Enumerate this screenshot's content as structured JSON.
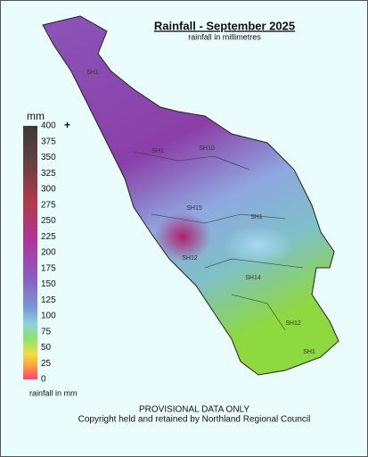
{
  "header": {
    "title": "Rainfall - September 2025",
    "subtitle": "rainfall in millimetres"
  },
  "legend": {
    "unit": "mm",
    "plus": "+",
    "ticks": [
      400,
      375,
      350,
      325,
      300,
      275,
      250,
      225,
      200,
      175,
      150,
      125,
      100,
      75,
      50,
      25,
      0
    ],
    "caption": "rainfall in mm"
  },
  "road_labels": [
    "SH1",
    "SH1",
    "SH10",
    "SH15",
    "SH1",
    "SH12",
    "SH14",
    "SH12",
    "SH1"
  ],
  "footer": {
    "line1": "PROVISIONAL DATA ONLY",
    "line2": "Copyright held and retained by Northland Regional Council"
  }
}
